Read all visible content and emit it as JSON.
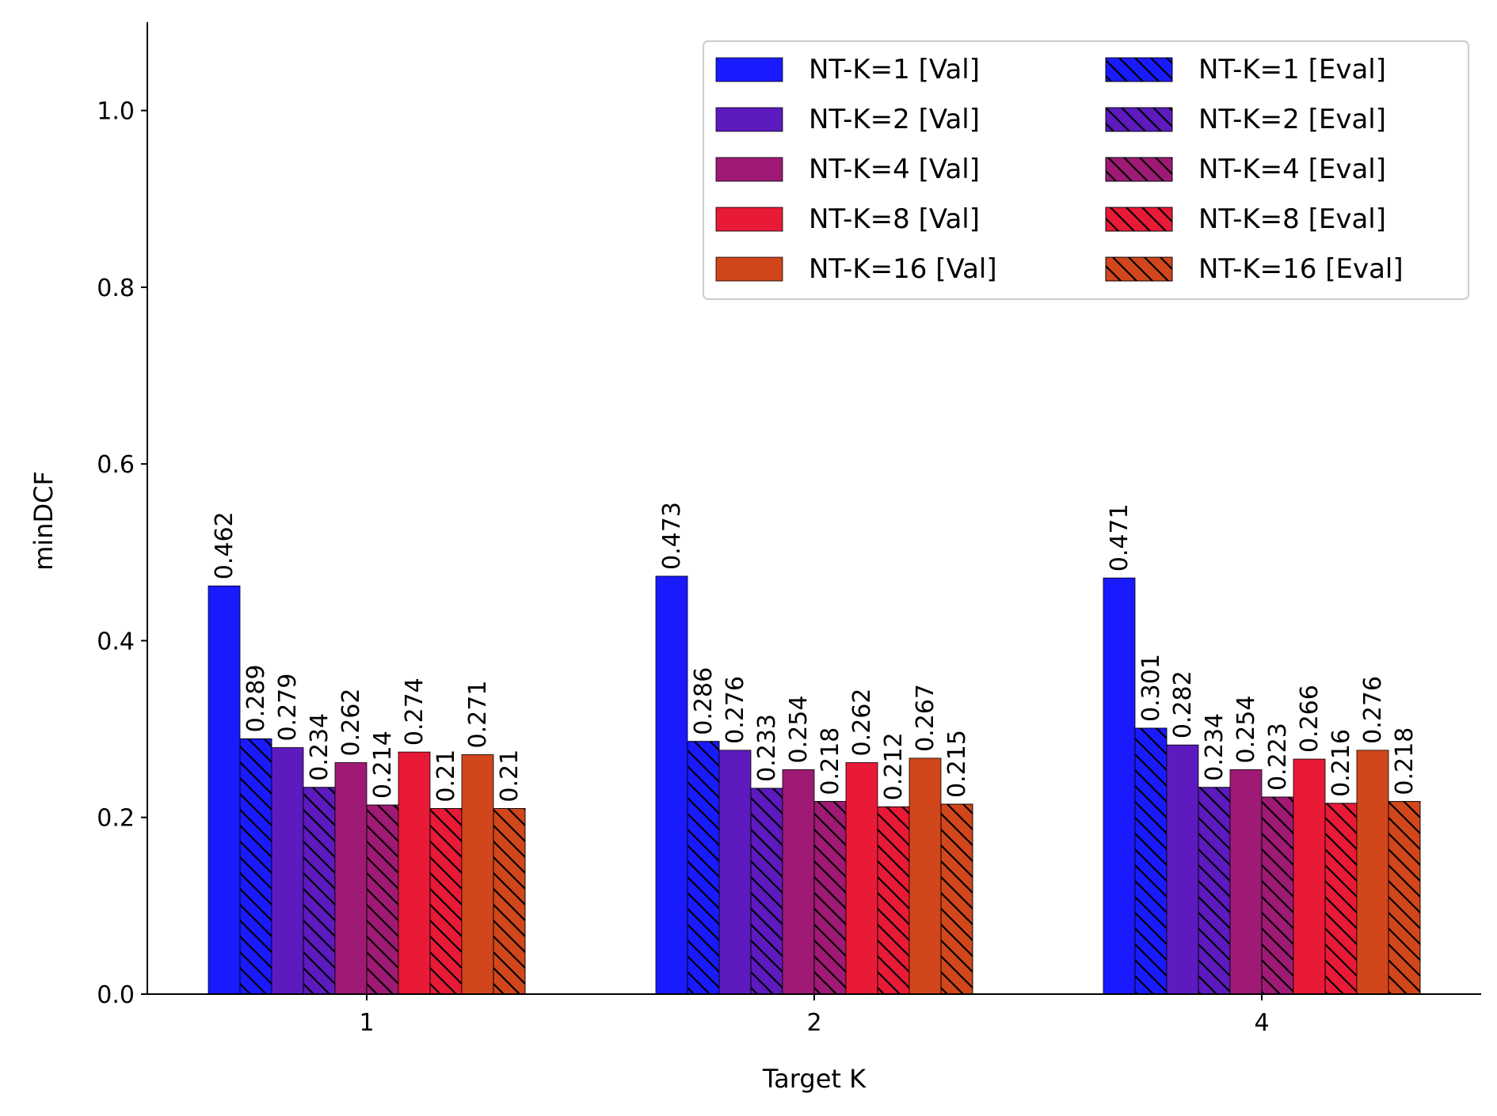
{
  "chart_data": {
    "type": "bar",
    "title": "",
    "xlabel": "Target K",
    "ylabel": "minDCF",
    "ylim": [
      0,
      1.1
    ],
    "yticks": [
      "0.0",
      "0.2",
      "0.4",
      "0.6",
      "0.8",
      "1.0"
    ],
    "ytick_values": [
      0.0,
      0.2,
      0.4,
      0.6,
      0.8,
      1.0
    ],
    "categories": [
      "1",
      "2",
      "4"
    ],
    "grid": false,
    "legend_position": "top-right",
    "legend_columns": 2,
    "series": [
      {
        "name": "NT-K=1 [Val]",
        "color": "#1a1aff",
        "hatch": false,
        "values": [
          0.462,
          0.473,
          0.471
        ],
        "labels": [
          "0.462",
          "0.473",
          "0.471"
        ]
      },
      {
        "name": "NT-K=1 [Eval]",
        "color": "#1a1aff",
        "hatch": true,
        "values": [
          0.289,
          0.286,
          0.301
        ],
        "labels": [
          "0.289",
          "0.286",
          "0.301"
        ]
      },
      {
        "name": "NT-K=2 [Val]",
        "color": "#5c1abf",
        "hatch": false,
        "values": [
          0.279,
          0.276,
          0.282
        ],
        "labels": [
          "0.279",
          "0.276",
          "0.282"
        ]
      },
      {
        "name": "NT-K=2 [Eval]",
        "color": "#5c1abf",
        "hatch": true,
        "values": [
          0.234,
          0.233,
          0.234
        ],
        "labels": [
          "0.234",
          "0.233",
          "0.234"
        ]
      },
      {
        "name": "NT-K=4 [Val]",
        "color": "#9e1a75",
        "hatch": false,
        "values": [
          0.262,
          0.254,
          0.254
        ],
        "labels": [
          "0.262",
          "0.254",
          "0.254"
        ]
      },
      {
        "name": "NT-K=4 [Eval]",
        "color": "#9e1a75",
        "hatch": true,
        "values": [
          0.214,
          0.218,
          0.223
        ],
        "labels": [
          "0.214",
          "0.218",
          "0.223"
        ]
      },
      {
        "name": "NT-K=8 [Val]",
        "color": "#e81a36",
        "hatch": false,
        "values": [
          0.274,
          0.262,
          0.266
        ],
        "labels": [
          "0.274",
          "0.262",
          "0.266"
        ]
      },
      {
        "name": "NT-K=8 [Eval]",
        "color": "#e81a36",
        "hatch": true,
        "values": [
          0.21,
          0.212,
          0.216
        ],
        "labels": [
          "0.21",
          "0.212",
          "0.216"
        ]
      },
      {
        "name": "NT-K=16 [Val]",
        "color": "#d1461a",
        "hatch": false,
        "values": [
          0.271,
          0.267,
          0.276
        ],
        "labels": [
          "0.271",
          "0.267",
          "0.276"
        ]
      },
      {
        "name": "NT-K=16 [Eval]",
        "color": "#d1461a",
        "hatch": true,
        "values": [
          0.21,
          0.215,
          0.218
        ],
        "labels": [
          "0.21",
          "0.215",
          "0.218"
        ]
      }
    ],
    "legend_order": [
      "NT-K=1 [Val]",
      "NT-K=1 [Eval]",
      "NT-K=2 [Val]",
      "NT-K=2 [Eval]",
      "NT-K=4 [Val]",
      "NT-K=4 [Eval]",
      "NT-K=8 [Val]",
      "NT-K=8 [Eval]",
      "NT-K=16 [Val]",
      "NT-K=16 [Eval]"
    ]
  }
}
